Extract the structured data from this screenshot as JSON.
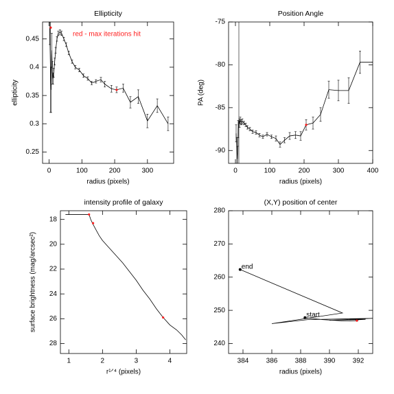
{
  "chart_data": [
    {
      "type": "line",
      "title": "Ellipticity",
      "x_label": "radius (pixels)",
      "y_label": "ellipticity",
      "annotation": {
        "text": "red - max iterations hit",
        "color": "#ff2020"
      },
      "xlim": [
        -20,
        380
      ],
      "ylim": [
        0.23,
        0.48
      ],
      "xticks": [
        0,
        100,
        200,
        300
      ],
      "yticks": [
        0.25,
        0.3,
        0.35,
        0.4,
        0.45
      ],
      "series": [
        {
          "style": "line",
          "color": "#000000",
          "x": [
            2,
            4,
            6,
            8,
            10,
            12,
            14,
            17,
            20,
            24,
            28,
            33,
            38,
            45,
            52,
            60,
            70,
            80,
            92,
            105,
            118,
            130,
            143,
            158,
            170,
            190,
            206,
            226,
            248,
            272,
            300,
            330,
            363
          ],
          "values": [
            0.47,
            0.4,
            0.36,
            0.43,
            0.39,
            0.38,
            0.39,
            0.41,
            0.43,
            0.45,
            0.46,
            0.462,
            0.46,
            0.45,
            0.44,
            0.425,
            0.41,
            0.4,
            0.395,
            0.385,
            0.38,
            0.372,
            0.375,
            0.378,
            0.37,
            0.362,
            0.36,
            0.363,
            0.338,
            0.348,
            0.305,
            0.332,
            0.3
          ],
          "errors": [
            0.03,
            0.08,
            0.04,
            0.03,
            0.02,
            0.01,
            0.008,
            0.006,
            0.005,
            0.004,
            0.004,
            0.004,
            0.004,
            0.003,
            0.003,
            0.003,
            0.003,
            0.003,
            0.003,
            0.003,
            0.003,
            0.003,
            0.003,
            0.004,
            0.005,
            0.006,
            0.005,
            0.007,
            0.01,
            0.012,
            0.012,
            0.012,
            0.012
          ]
        },
        {
          "style": "points",
          "color": "#ff2020",
          "x": [
            5,
            206
          ],
          "values": [
            0.47,
            0.36
          ]
        }
      ]
    },
    {
      "type": "line",
      "title": "Position Angle",
      "x_label": "radius (pixels)",
      "y_label": "PA (deg)",
      "xlim": [
        -20,
        400
      ],
      "ylim": [
        -91.5,
        -75
      ],
      "xticks": [
        0,
        100,
        200,
        300,
        400
      ],
      "yticks": [
        -90,
        -85,
        -80,
        -75
      ],
      "series": [
        {
          "style": "line",
          "color": "#000000",
          "x": [
            2,
            4,
            6,
            8,
            10,
            12,
            14,
            17,
            20,
            25,
            30,
            35,
            42,
            50,
            60,
            70,
            80,
            92,
            105,
            118,
            130,
            143,
            158,
            175,
            190,
            206,
            226,
            248,
            272,
            300,
            330,
            363,
            400
          ],
          "values": [
            -88,
            -90,
            -91,
            -87.5,
            -86.5,
            -86.8,
            -86.5,
            -86.7,
            -86.6,
            -86.8,
            -87,
            -87.3,
            -87.5,
            -87.8,
            -87.9,
            -88.2,
            -88.4,
            -88.1,
            -88.4,
            -88.6,
            -89.3,
            -88.8,
            -88.3,
            -88.2,
            -88.3,
            -87,
            -86.8,
            -85.8,
            -82.9,
            -83,
            -83,
            -79.7,
            -79.7
          ],
          "errors": [
            1,
            1.5,
            1.5,
            1,
            12,
            0.5,
            0.4,
            0.3,
            0.3,
            0.2,
            0.2,
            0.2,
            0.2,
            0.2,
            0.2,
            0.2,
            0.2,
            0.2,
            0.2,
            0.3,
            0.3,
            0.3,
            0.4,
            0.4,
            0.5,
            0.6,
            0.7,
            0.8,
            1,
            1.2,
            1.5,
            1.3,
            0
          ]
        },
        {
          "style": "points",
          "color": "#ff2020",
          "x": [
            206
          ],
          "values": [
            -87
          ]
        }
      ]
    },
    {
      "type": "line",
      "title": "intensity profile of galaxy",
      "x_label": "r¹ᐟ⁴ (pixels)",
      "y_label": "surface brightness (mag/arcsec²)",
      "xlim": [
        0.75,
        4.5
      ],
      "ylim": [
        28.8,
        17.3
      ],
      "xticks": [
        1,
        2,
        3,
        4
      ],
      "yticks": [
        18,
        20,
        22,
        24,
        26,
        28
      ],
      "series": [
        {
          "style": "line",
          "color": "#000000",
          "x": [
            0.9,
            1.2,
            1.4,
            1.6,
            1.65,
            1.7,
            1.8,
            1.9,
            2.0,
            2.2,
            2.4,
            2.6,
            2.8,
            3.0,
            3.2,
            3.4,
            3.6,
            3.8,
            4.0,
            4.2,
            4.35,
            4.47
          ],
          "values": [
            17.6,
            17.6,
            17.6,
            17.6,
            18.0,
            18.3,
            18.8,
            19.3,
            19.7,
            20.3,
            20.9,
            21.5,
            22.2,
            22.9,
            23.7,
            24.4,
            25.2,
            25.9,
            26.5,
            26.9,
            27.3,
            27.7
          ]
        },
        {
          "style": "points",
          "color": "#ff2020",
          "x": [
            1.6,
            1.72,
            3.8
          ],
          "values": [
            17.6,
            18.3,
            25.9
          ]
        }
      ]
    },
    {
      "type": "line",
      "title": "(X,Y) position of center",
      "x_label": "radius (pixels)",
      "xlim": [
        383,
        393
      ],
      "ylim": [
        237,
        280
      ],
      "xticks": [
        384,
        386,
        388,
        390,
        392
      ],
      "yticks": [
        240,
        250,
        260,
        270,
        280
      ],
      "series": [
        {
          "style": "line",
          "color": "#000000",
          "x": [
            388.3,
            389.5,
            391,
            392,
            391.8,
            392.5,
            390,
            393,
            388.5,
            386,
            390.9,
            383.8
          ],
          "values": [
            247.8,
            247.2,
            246.8,
            246.9,
            247.1,
            247.3,
            247,
            247.6,
            247.2,
            246,
            249.2,
            262.3
          ]
        },
        {
          "style": "points",
          "color": "#ff2020",
          "x": [
            391.9
          ],
          "values": [
            246.9
          ]
        }
      ],
      "annotations": [
        {
          "text": "start",
          "x": 388.3,
          "y": 247.8
        },
        {
          "text": "end",
          "x": 383.8,
          "y": 262.3
        }
      ]
    }
  ]
}
